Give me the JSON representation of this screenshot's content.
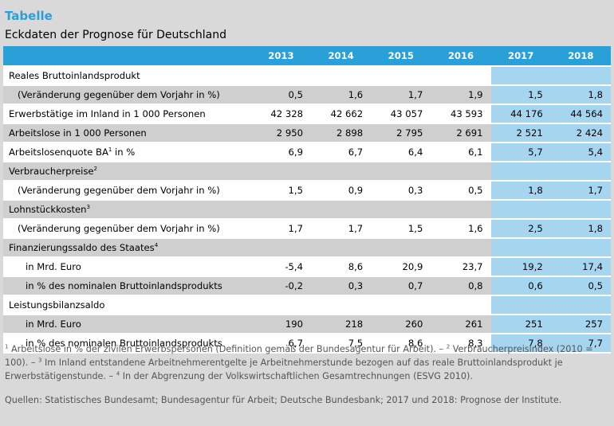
{
  "header": {
    "kicker": "Tabelle",
    "title": "Eckdaten der Prognose für Deutschland"
  },
  "colors": {
    "accent": "#2aa0d8",
    "forecast_fill": "#a6d6ef",
    "row_gray": "#cfcfcf",
    "background": "#d9d9d9"
  },
  "table": {
    "years": [
      "2013",
      "2014",
      "2015",
      "2016",
      "2017",
      "2018"
    ],
    "rows": [
      {
        "label": "Reales Bruttoinlandsprodukt",
        "sup": "",
        "indent": 0,
        "shade": "white",
        "values": [
          "",
          "",
          "",
          "",
          "",
          ""
        ]
      },
      {
        "label": "(Veränderung gegenüber dem Vorjahr in %)",
        "sup": "",
        "indent": 1,
        "shade": "gray",
        "values": [
          "0,5",
          "1,6",
          "1,7",
          "1,9",
          "1,5",
          "1,8"
        ]
      },
      {
        "label": "Erwerbstätige im Inland in 1 000 Personen",
        "sup": "",
        "indent": 0,
        "shade": "white",
        "values": [
          "42 328",
          "42 662",
          "43 057",
          "43 593",
          "44 176",
          "44 564"
        ]
      },
      {
        "label": "Arbeitslose in 1 000 Personen",
        "sup": "",
        "indent": 0,
        "shade": "gray",
        "values": [
          "2 950",
          "2 898",
          "2 795",
          "2 691",
          "2 521",
          "2 424"
        ]
      },
      {
        "label": "Arbeitslosenquote BA",
        "sup": "1",
        "label_suffix": " in %",
        "indent": 0,
        "shade": "white",
        "values": [
          "6,9",
          "6,7",
          "6,4",
          "6,1",
          "5,7",
          "5,4"
        ]
      },
      {
        "label": "Verbraucherpreise",
        "sup": "2",
        "indent": 0,
        "shade": "gray",
        "values": [
          "",
          "",
          "",
          "",
          "",
          ""
        ]
      },
      {
        "label": "(Veränderung gegenüber dem Vorjahr in %)",
        "sup": "",
        "indent": 1,
        "shade": "white",
        "values": [
          "1,5",
          "0,9",
          "0,3",
          "0,5",
          "1,8",
          "1,7"
        ]
      },
      {
        "label": "Lohnstückkosten",
        "sup": "3",
        "indent": 0,
        "shade": "gray",
        "values": [
          "",
          "",
          "",
          "",
          "",
          ""
        ]
      },
      {
        "label": "(Veränderung gegenüber dem Vorjahr in %)",
        "sup": "",
        "indent": 1,
        "shade": "white",
        "values": [
          "1,7",
          "1,7",
          "1,5",
          "1,6",
          "2,5",
          "1,8"
        ]
      },
      {
        "label": "Finanzierungssaldo des Staates",
        "sup": "4",
        "indent": 0,
        "shade": "gray",
        "values": [
          "",
          "",
          "",
          "",
          "",
          ""
        ]
      },
      {
        "label": "in Mrd. Euro",
        "sup": "",
        "indent": 2,
        "shade": "white",
        "values": [
          "-5,4",
          "8,6",
          "20,9",
          "23,7",
          "19,2",
          "17,4"
        ]
      },
      {
        "label": "in % des nominalen Bruttoinlandsprodukts",
        "sup": "",
        "indent": 2,
        "shade": "gray",
        "values": [
          "-0,2",
          "0,3",
          "0,7",
          "0,8",
          "0,6",
          "0,5"
        ]
      },
      {
        "label": "Leistungsbilanzsaldo",
        "sup": "",
        "indent": 0,
        "shade": "white",
        "values": [
          "",
          "",
          "",
          "",
          "",
          ""
        ]
      },
      {
        "label": "in Mrd. Euro",
        "sup": "",
        "indent": 2,
        "shade": "gray",
        "values": [
          "190",
          "218",
          "260",
          "261",
          "251",
          "257"
        ]
      },
      {
        "label": "in % des nominalen Bruttoinlandsprodukts",
        "sup": "",
        "indent": 2,
        "shade": "white",
        "values": [
          "6,7",
          "7,5",
          "8,6",
          "8,3",
          "7,8",
          "7,7"
        ]
      }
    ]
  },
  "footnotes": {
    "f1_sup": "1",
    "f1": " Arbeitslose in % der zivilen Erwerbspersonen (Definition gemäß der Bundesagentur für Arbeit). – ",
    "f2_sup": "2",
    "f2": " Verbraucherpreisindex (2010 = 100). – ",
    "f3_sup": "3",
    "f3": " Im Inland entstandene Arbeitnehmerentgelte je Arbeitnehmerstunde bezogen auf das reale Bruttoinlandsprodukt je Erwerbstätigenstunde. – ",
    "f4_sup": "4",
    "f4": " In der Abgrenzung der Volkswirtschaftlichen Gesamtrechnungen (ESVG 2010)."
  },
  "sources": "Quellen: Statistisches Bundesamt; Bundesagentur für Arbeit; Deutsche Bundesbank; 2017 und 2018: Prognose der Institute."
}
